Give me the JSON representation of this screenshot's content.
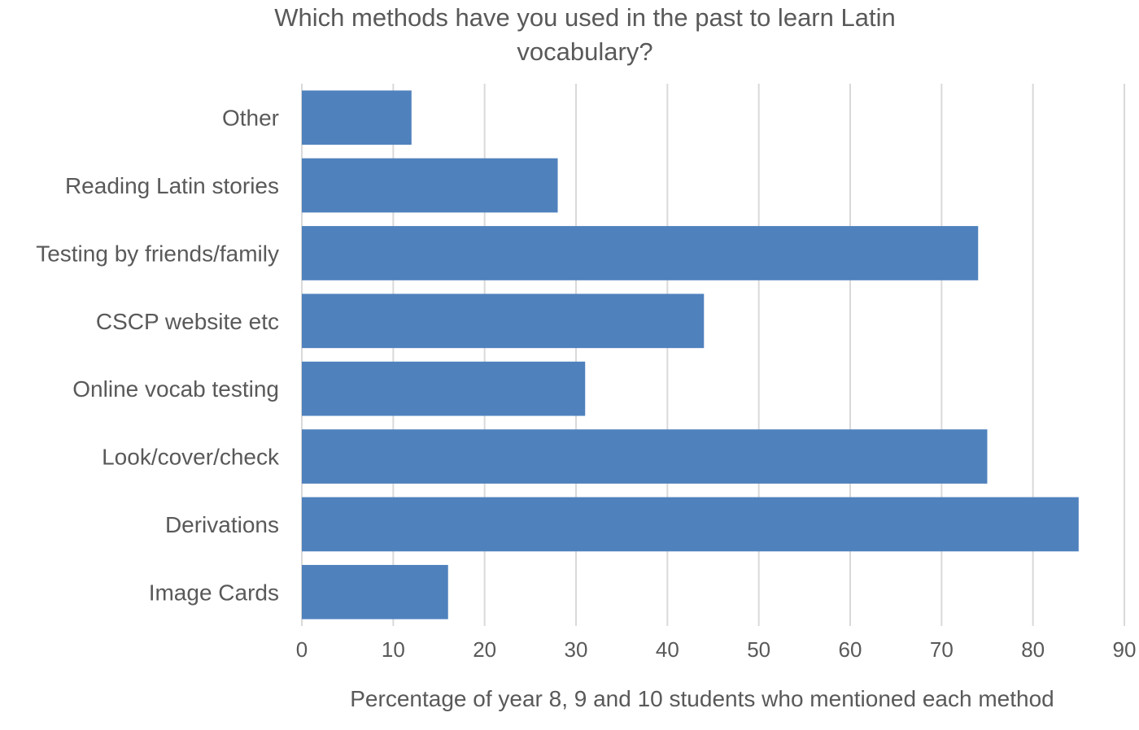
{
  "chart_data": {
    "type": "bar",
    "orientation": "horizontal",
    "title_lines": [
      "Which methods have you used in the past to learn Latin",
      "vocabulary?"
    ],
    "xlabel": "Percentage of year 8, 9 and 10 students who mentioned each method",
    "ylabel": "",
    "xlim": [
      0,
      90
    ],
    "xticks": [
      "0",
      "10",
      "20",
      "30",
      "40",
      "50",
      "60",
      "70",
      "80",
      "90"
    ],
    "grid": true,
    "legend": "none",
    "categories": [
      "Other",
      "Reading Latin stories",
      "Testing by friends/family",
      "CSCP website etc",
      "Online vocab testing",
      "Look/cover/check",
      "Derivations",
      "Image Cards"
    ],
    "values": [
      12,
      28,
      74,
      44,
      31,
      75,
      85,
      16
    ],
    "bar_color": "#4f81bd"
  }
}
